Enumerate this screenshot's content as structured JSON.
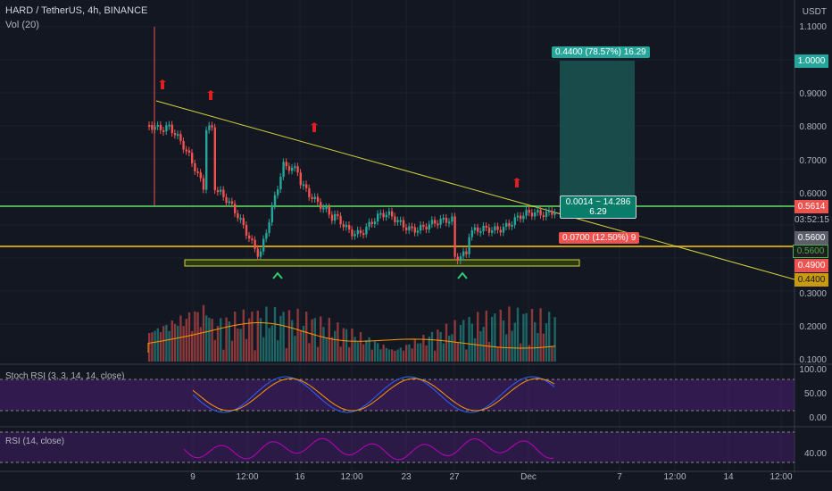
{
  "header": {
    "symbol": "HARD / TetherUS, 4h, BINANCE",
    "vol_indicator": "Vol (20)",
    "currency": "USDT"
  },
  "price_axis": {
    "ticks": [
      "1.1000",
      "0.9000",
      "0.8000",
      "0.7000",
      "0.6000",
      "0.3000",
      "0.2000",
      "0.1000"
    ]
  },
  "price_labels": {
    "current": "0.5614",
    "countdown": "03:52:15",
    "level_gray": "0.5600",
    "level_green": "0.5600",
    "level_red": "0.4900",
    "level_orange": "0.4400",
    "target": "1.0000"
  },
  "position": {
    "target_label": "0.4400 (78.57%) 16.29",
    "ratio_line1": "0.0014 ~ 14.286",
    "ratio_line2": "6.29",
    "stop_label": "0.0700 (12.50%) 9"
  },
  "stoch_rsi": {
    "title": "Stoch RSI (3, 3, 14, 14, close)",
    "ticks": [
      "100.00",
      "50.00",
      "0.00"
    ]
  },
  "rsi": {
    "title": "RSI (14, close)",
    "ticks": [
      "40.00"
    ]
  },
  "time_axis": {
    "ticks": [
      "9",
      "12:00",
      "16",
      "12:00",
      "23",
      "27",
      "Dec",
      "7",
      "12:00",
      "14",
      "12:00"
    ]
  },
  "colors": {
    "background": "#131722",
    "bull": "#26a69a",
    "bear": "#ef5350",
    "trendline": "#d4d43a",
    "green_level": "#4caf50",
    "orange_level": "#c79a12",
    "target_zone": "#1b5e57",
    "stoch_k": "#2962ff",
    "stoch_d": "#ff9800",
    "rsi_line": "#c000c0",
    "pane_fill": "#4a1f73"
  }
}
